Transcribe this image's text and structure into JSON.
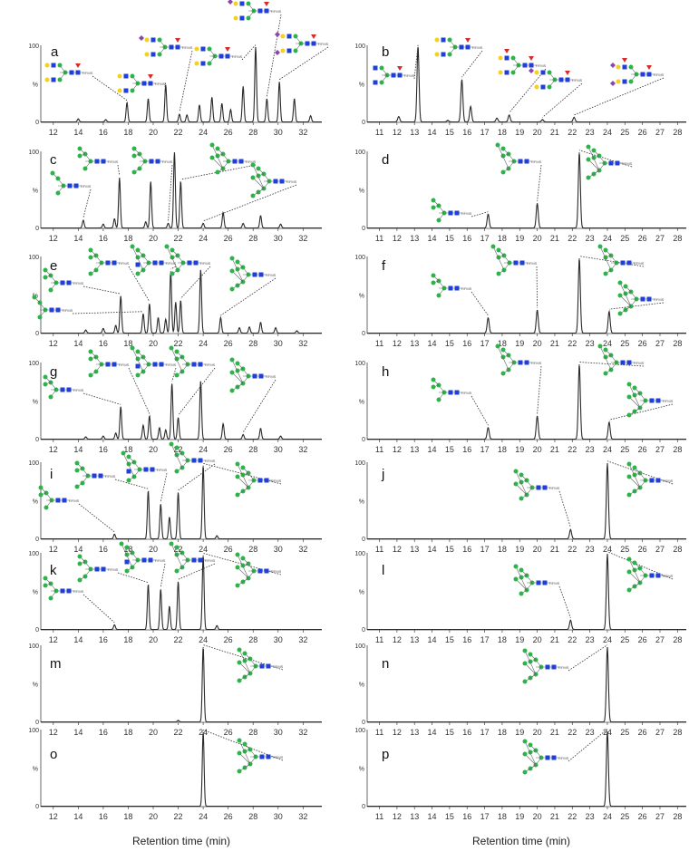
{
  "figure": {
    "x_axis_label_left": "Retention time (min)",
    "x_axis_label_right": "Retention time (min)",
    "y_tick_labels": [
      "100",
      "%",
      "0"
    ],
    "glycan_tag": "RFMS",
    "colors": {
      "trace": "#2a2a2a",
      "leader": "#333333",
      "mannose": "#2db34a",
      "glcnac": "#1f3fd6",
      "galactose": "#f2d21a",
      "fucose": "#d62a2a",
      "sialic_acid": "#8e44ad"
    }
  },
  "chart_data": [
    {
      "panel": "a",
      "type": "line",
      "xlim": [
        11,
        33.5
      ],
      "xticks": [
        12,
        14,
        16,
        18,
        20,
        22,
        24,
        26,
        28,
        30,
        32
      ],
      "ylim": [
        0,
        100
      ],
      "peaks": [
        {
          "x": 14.0,
          "y": 4
        },
        {
          "x": 16.2,
          "y": 3
        },
        {
          "x": 17.9,
          "y": 25
        },
        {
          "x": 19.6,
          "y": 30
        },
        {
          "x": 21.0,
          "y": 48
        },
        {
          "x": 22.1,
          "y": 10
        },
        {
          "x": 22.7,
          "y": 9
        },
        {
          "x": 23.7,
          "y": 22
        },
        {
          "x": 24.7,
          "y": 32
        },
        {
          "x": 25.5,
          "y": 24
        },
        {
          "x": 26.2,
          "y": 16
        },
        {
          "x": 27.2,
          "y": 46
        },
        {
          "x": 28.2,
          "y": 97
        },
        {
          "x": 29.1,
          "y": 30
        },
        {
          "x": 30.1,
          "y": 52
        },
        {
          "x": 31.3,
          "y": 30
        },
        {
          "x": 32.6,
          "y": 8
        }
      ]
    },
    {
      "panel": "b",
      "type": "line",
      "xlim": [
        10.3,
        28.5
      ],
      "xticks": [
        11,
        12,
        13,
        14,
        15,
        16,
        17,
        18,
        19,
        20,
        21,
        22,
        23,
        24,
        25,
        26,
        27,
        28
      ],
      "ylim": [
        0,
        100
      ],
      "peaks": [
        {
          "x": 12.1,
          "y": 7
        },
        {
          "x": 13.2,
          "y": 97
        },
        {
          "x": 14.9,
          "y": 2
        },
        {
          "x": 15.7,
          "y": 55
        },
        {
          "x": 16.2,
          "y": 20
        },
        {
          "x": 17.7,
          "y": 5
        },
        {
          "x": 18.4,
          "y": 9
        },
        {
          "x": 20.3,
          "y": 3
        },
        {
          "x": 22.1,
          "y": 6
        }
      ]
    },
    {
      "panel": "c",
      "type": "line",
      "xlim": [
        11,
        33.5
      ],
      "xticks": [
        12,
        14,
        16,
        18,
        20,
        22,
        24,
        26,
        28,
        30,
        32
      ],
      "ylim": [
        0,
        100
      ],
      "peaks": [
        {
          "x": 14.4,
          "y": 10
        },
        {
          "x": 16.0,
          "y": 5
        },
        {
          "x": 16.9,
          "y": 12
        },
        {
          "x": 17.3,
          "y": 65
        },
        {
          "x": 19.4,
          "y": 8
        },
        {
          "x": 19.8,
          "y": 60
        },
        {
          "x": 21.2,
          "y": 6
        },
        {
          "x": 21.7,
          "y": 98
        },
        {
          "x": 22.2,
          "y": 60
        },
        {
          "x": 24.0,
          "y": 6
        },
        {
          "x": 25.6,
          "y": 20
        },
        {
          "x": 27.2,
          "y": 6
        },
        {
          "x": 28.6,
          "y": 16
        },
        {
          "x": 30.2,
          "y": 5
        }
      ]
    },
    {
      "panel": "d",
      "type": "line",
      "xlim": [
        10.3,
        28.5
      ],
      "xticks": [
        11,
        12,
        13,
        14,
        15,
        16,
        17,
        18,
        19,
        20,
        21,
        22,
        23,
        24,
        25,
        26,
        27,
        28
      ],
      "ylim": [
        0,
        100
      ],
      "peaks": [
        {
          "x": 17.2,
          "y": 18
        },
        {
          "x": 20.0,
          "y": 32
        },
        {
          "x": 22.4,
          "y": 98
        }
      ]
    },
    {
      "panel": "e",
      "type": "line",
      "xlim": [
        11,
        33.5
      ],
      "xticks": [
        12,
        14,
        16,
        18,
        20,
        22,
        24,
        26,
        28,
        30,
        32
      ],
      "ylim": [
        0,
        100
      ],
      "peaks": [
        {
          "x": 14.6,
          "y": 4
        },
        {
          "x": 16.0,
          "y": 6
        },
        {
          "x": 17.0,
          "y": 10
        },
        {
          "x": 17.4,
          "y": 48
        },
        {
          "x": 19.2,
          "y": 25
        },
        {
          "x": 19.7,
          "y": 38
        },
        {
          "x": 20.4,
          "y": 20
        },
        {
          "x": 21.0,
          "y": 18
        },
        {
          "x": 21.4,
          "y": 80
        },
        {
          "x": 21.8,
          "y": 40
        },
        {
          "x": 22.2,
          "y": 42
        },
        {
          "x": 23.8,
          "y": 82
        },
        {
          "x": 25.4,
          "y": 20
        },
        {
          "x": 26.9,
          "y": 7
        },
        {
          "x": 27.7,
          "y": 8
        },
        {
          "x": 28.6,
          "y": 14
        },
        {
          "x": 29.8,
          "y": 7
        },
        {
          "x": 31.5,
          "y": 3
        }
      ]
    },
    {
      "panel": "f",
      "type": "line",
      "xlim": [
        10.3,
        28.5
      ],
      "xticks": [
        11,
        12,
        13,
        14,
        15,
        16,
        17,
        18,
        19,
        20,
        21,
        22,
        23,
        24,
        25,
        26,
        27,
        28
      ],
      "ylim": [
        0,
        100
      ],
      "peaks": [
        {
          "x": 17.2,
          "y": 20
        },
        {
          "x": 20.0,
          "y": 30
        },
        {
          "x": 22.4,
          "y": 97
        },
        {
          "x": 24.1,
          "y": 28
        }
      ]
    },
    {
      "panel": "g",
      "type": "line",
      "xlim": [
        11,
        33.5
      ],
      "xticks": [
        12,
        14,
        16,
        18,
        20,
        22,
        24,
        26,
        28,
        30,
        32
      ],
      "ylim": [
        0,
        100
      ],
      "peaks": [
        {
          "x": 14.6,
          "y": 3
        },
        {
          "x": 16.0,
          "y": 4
        },
        {
          "x": 17.0,
          "y": 8
        },
        {
          "x": 17.4,
          "y": 42
        },
        {
          "x": 19.2,
          "y": 18
        },
        {
          "x": 19.7,
          "y": 30
        },
        {
          "x": 20.5,
          "y": 15
        },
        {
          "x": 21.0,
          "y": 12
        },
        {
          "x": 21.5,
          "y": 72
        },
        {
          "x": 22.0,
          "y": 28
        },
        {
          "x": 23.8,
          "y": 75
        },
        {
          "x": 25.6,
          "y": 20
        },
        {
          "x": 27.2,
          "y": 6
        },
        {
          "x": 28.6,
          "y": 14
        },
        {
          "x": 30.2,
          "y": 4
        }
      ]
    },
    {
      "panel": "h",
      "type": "line",
      "xlim": [
        10.3,
        28.5
      ],
      "xticks": [
        11,
        12,
        13,
        14,
        15,
        16,
        17,
        18,
        19,
        20,
        21,
        22,
        23,
        24,
        25,
        26,
        27,
        28
      ],
      "ylim": [
        0,
        100
      ],
      "peaks": [
        {
          "x": 17.2,
          "y": 15
        },
        {
          "x": 20.0,
          "y": 30
        },
        {
          "x": 22.4,
          "y": 97
        },
        {
          "x": 24.1,
          "y": 22
        }
      ]
    },
    {
      "panel": "i",
      "type": "line",
      "xlim": [
        11,
        33.5
      ],
      "xticks": [
        12,
        14,
        16,
        18,
        20,
        22,
        24,
        26,
        28,
        30,
        32
      ],
      "ylim": [
        0,
        100
      ],
      "peaks": [
        {
          "x": 16.9,
          "y": 6
        },
        {
          "x": 19.6,
          "y": 62
        },
        {
          "x": 20.6,
          "y": 45
        },
        {
          "x": 21.3,
          "y": 28
        },
        {
          "x": 22.0,
          "y": 60
        },
        {
          "x": 24.0,
          "y": 95
        },
        {
          "x": 25.1,
          "y": 4
        }
      ]
    },
    {
      "panel": "j",
      "type": "line",
      "xlim": [
        10.3,
        28.5
      ],
      "xticks": [
        11,
        12,
        13,
        14,
        15,
        16,
        17,
        18,
        19,
        20,
        21,
        22,
        23,
        24,
        25,
        26,
        27,
        28
      ],
      "ylim": [
        0,
        100
      ],
      "peaks": [
        {
          "x": 21.9,
          "y": 12
        },
        {
          "x": 24.0,
          "y": 98
        }
      ]
    },
    {
      "panel": "k",
      "type": "line",
      "xlim": [
        11,
        33.5
      ],
      "xticks": [
        12,
        14,
        16,
        18,
        20,
        22,
        24,
        26,
        28,
        30,
        32
      ],
      "ylim": [
        0,
        100
      ],
      "peaks": [
        {
          "x": 16.9,
          "y": 6
        },
        {
          "x": 19.6,
          "y": 58
        },
        {
          "x": 20.6,
          "y": 52
        },
        {
          "x": 21.3,
          "y": 30
        },
        {
          "x": 22.0,
          "y": 62
        },
        {
          "x": 24.0,
          "y": 96
        },
        {
          "x": 25.1,
          "y": 5
        }
      ]
    },
    {
      "panel": "l",
      "type": "line",
      "xlim": [
        10.3,
        28.5
      ],
      "xticks": [
        11,
        12,
        13,
        14,
        15,
        16,
        17,
        18,
        19,
        20,
        21,
        22,
        23,
        24,
        25,
        26,
        27,
        28
      ],
      "ylim": [
        0,
        100
      ],
      "peaks": [
        {
          "x": 21.9,
          "y": 12
        },
        {
          "x": 24.0,
          "y": 98
        }
      ]
    },
    {
      "panel": "m",
      "type": "line",
      "xlim": [
        11,
        33.5
      ],
      "xticks": [
        12,
        14,
        16,
        18,
        20,
        22,
        24,
        26,
        28,
        30,
        32
      ],
      "ylim": [
        0,
        100
      ],
      "peaks": [
        {
          "x": 22.0,
          "y": 2
        },
        {
          "x": 24.0,
          "y": 97
        }
      ]
    },
    {
      "panel": "n",
      "type": "line",
      "xlim": [
        10.3,
        28.5
      ],
      "xticks": [
        11,
        12,
        13,
        14,
        15,
        16,
        17,
        18,
        19,
        20,
        21,
        22,
        23,
        24,
        25,
        26,
        27,
        28
      ],
      "ylim": [
        0,
        100
      ],
      "peaks": [
        {
          "x": 24.0,
          "y": 97
        }
      ]
    },
    {
      "panel": "o",
      "type": "line",
      "xlim": [
        11,
        33.5
      ],
      "xticks": [
        12,
        14,
        16,
        18,
        20,
        22,
        24,
        26,
        28,
        30,
        32
      ],
      "ylim": [
        0,
        100
      ],
      "peaks": [
        {
          "x": 24.0,
          "y": 96
        }
      ]
    },
    {
      "panel": "p",
      "type": "line",
      "xlim": [
        10.3,
        28.5
      ],
      "xticks": [
        11,
        12,
        13,
        14,
        15,
        16,
        17,
        18,
        19,
        20,
        21,
        22,
        23,
        24,
        25,
        26,
        27,
        28
      ],
      "ylim": [
        0,
        100
      ],
      "peaks": [
        {
          "x": 24.0,
          "y": 97
        }
      ]
    }
  ]
}
